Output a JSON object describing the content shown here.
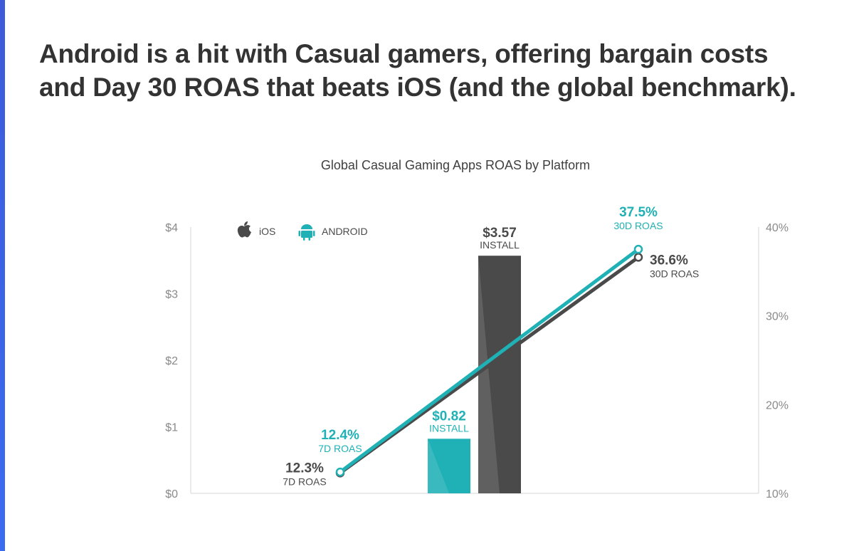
{
  "headline": {
    "line1": "Android is a hit with Casual gamers, offering bargain costs",
    "line2": "and Day 30 ROAS that beats iOS (and the global benchmark)."
  },
  "chart_data": {
    "type": "bar+line",
    "title": "Global Casual Gaming Apps ROAS by Platform",
    "colors": {
      "ios": "#4a4a4a",
      "android": "#1fb1b5",
      "axis": "#d6d6d6",
      "tick": "#8a8a8a"
    },
    "legend": [
      {
        "name": "iOS",
        "icon": "apple-icon"
      },
      {
        "name": "ANDROID",
        "icon": "android-icon"
      }
    ],
    "left_axis": {
      "ticks": [
        "$0",
        "$1",
        "$2",
        "$3",
        "$4"
      ],
      "range": [
        0,
        4
      ]
    },
    "right_axis": {
      "ticks": [
        "10%",
        "20%",
        "30%",
        "40%"
      ],
      "range": [
        10,
        40
      ]
    },
    "bars": [
      {
        "platform": "android",
        "value": 0.82,
        "label": "$0.82",
        "sublabel": "INSTALL"
      },
      {
        "platform": "ios",
        "value": 3.57,
        "label": "$3.57",
        "sublabel": "INSTALL"
      }
    ],
    "lines": [
      {
        "platform": "ios",
        "points": [
          {
            "x": "7D",
            "value": 12.3,
            "label": "12.3%",
            "sublabel": "7D ROAS"
          },
          {
            "x": "30D",
            "value": 36.6,
            "label": "36.6%",
            "sublabel": "30D ROAS"
          }
        ]
      },
      {
        "platform": "android",
        "points": [
          {
            "x": "7D",
            "value": 12.4,
            "label": "12.4%",
            "sublabel": "7D ROAS"
          },
          {
            "x": "30D",
            "value": 37.5,
            "label": "37.5%",
            "sublabel": "30D ROAS"
          }
        ]
      }
    ]
  }
}
